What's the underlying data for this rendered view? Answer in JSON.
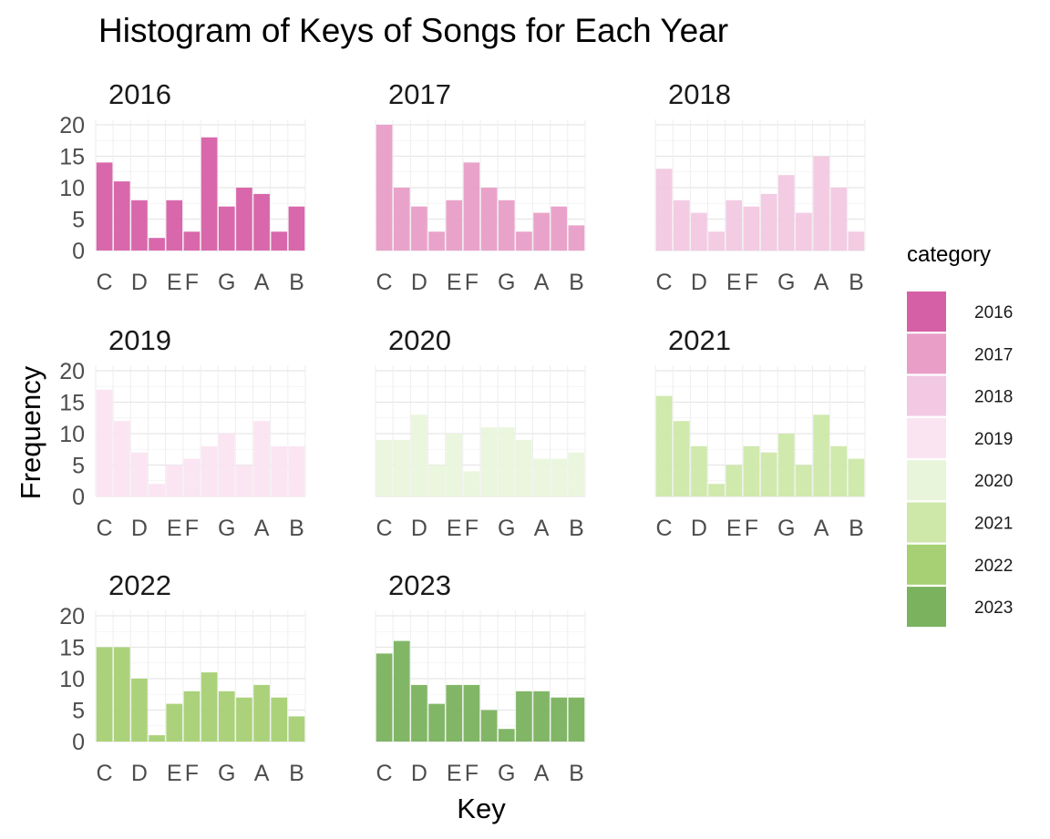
{
  "chart_data": {
    "type": "bar",
    "title": "Histogram of Keys of Songs for Each Year",
    "xlabel": "Key",
    "ylabel": "Frequency",
    "ylim": [
      0,
      20
    ],
    "yticks": [
      0,
      5,
      10,
      15,
      20
    ],
    "grid": true,
    "legend_position": "right",
    "legend_title": "category",
    "x_tick_labels": [
      {
        "label": "C",
        "after_bar": 0
      },
      {
        "label": "D",
        "after_bar": 2
      },
      {
        "label": "E",
        "after_bar": 4
      },
      {
        "label": "F",
        "after_bar": 5
      },
      {
        "label": "G",
        "after_bar": 7
      },
      {
        "label": "A",
        "after_bar": 9
      },
      {
        "label": "B",
        "after_bar": 11
      }
    ],
    "categories": [
      "C",
      "C#",
      "D",
      "D#",
      "E",
      "F",
      "F#",
      "G",
      "G#",
      "A",
      "A#",
      "B"
    ],
    "series": [
      {
        "name": "2016",
        "color": "#d660a6",
        "values": [
          14,
          11,
          8,
          2,
          8,
          3,
          18,
          7,
          10,
          9,
          3,
          7
        ]
      },
      {
        "name": "2017",
        "color": "#e89ec7",
        "values": [
          20,
          10,
          7,
          3,
          8,
          14,
          10,
          8,
          3,
          6,
          7,
          4
        ]
      },
      {
        "name": "2018",
        "color": "#f2c8e2",
        "values": [
          13,
          8,
          6,
          3,
          8,
          7,
          9,
          12,
          6,
          15,
          10,
          3
        ]
      },
      {
        "name": "2019",
        "color": "#fbe4f1",
        "values": [
          17,
          12,
          7,
          2,
          5,
          6,
          8,
          10,
          5,
          12,
          8,
          8
        ]
      },
      {
        "name": "2020",
        "color": "#e9f5db",
        "values": [
          9,
          9,
          13,
          5,
          10,
          4,
          11,
          11,
          9,
          6,
          6,
          7
        ]
      },
      {
        "name": "2021",
        "color": "#cde8a9",
        "values": [
          16,
          12,
          8,
          2,
          5,
          8,
          7,
          10,
          5,
          13,
          8,
          6
        ]
      },
      {
        "name": "2022",
        "color": "#a6d073",
        "values": [
          15,
          15,
          10,
          1,
          6,
          8,
          11,
          8,
          7,
          9,
          7,
          4
        ]
      },
      {
        "name": "2023",
        "color": "#7ab25e",
        "values": [
          14,
          16,
          9,
          6,
          9,
          9,
          5,
          2,
          8,
          8,
          7,
          7
        ]
      }
    ]
  }
}
